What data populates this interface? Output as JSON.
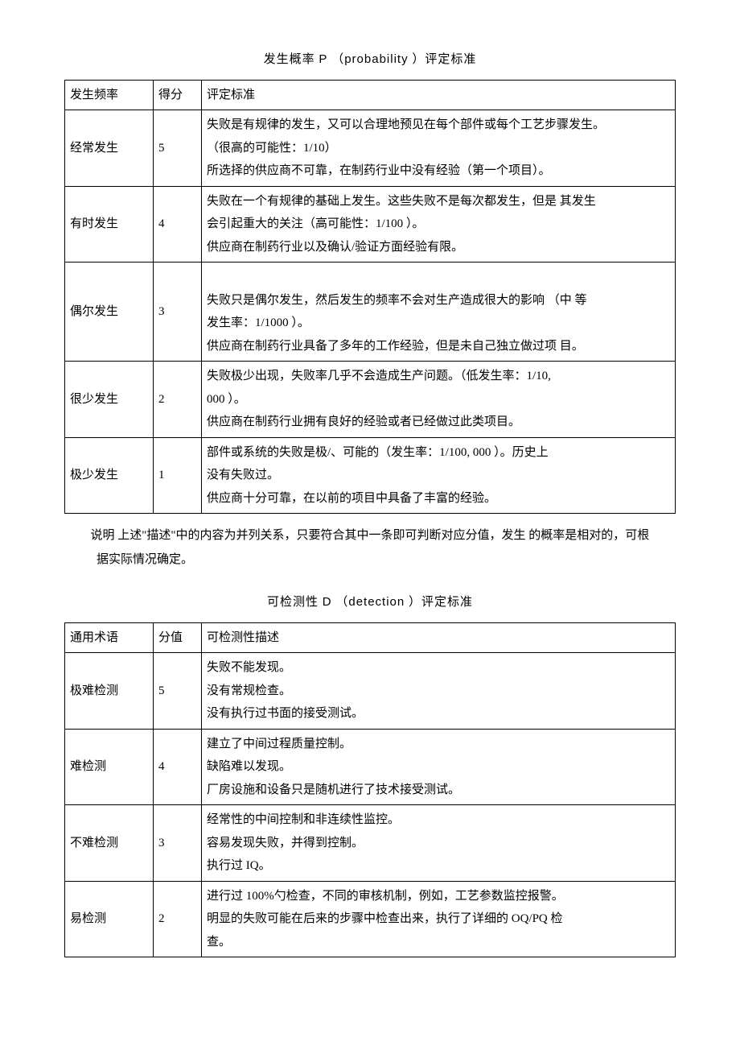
{
  "table1": {
    "title_prefix": "发生概率 ",
    "title_letter": "P",
    "title_paren_open": " （",
    "title_latin": "probability",
    "title_paren_close": " ）评定标准",
    "headers": {
      "c1": "发生频率",
      "c2": "得分",
      "c3": "评定标准"
    },
    "rows": [
      {
        "term": "经常发生",
        "score": "5",
        "lines": [
          " 失败是有规律的发生，又可以合理地预见在每个部件或每个工艺步骤发生。",
          "（很高的可能性：1/10）",
          "所选择的供应商不可靠，在制药行业中没有经验（第一个项目）。"
        ]
      },
      {
        "term": "有时发生",
        "score": "4",
        "lines": [
          " 失败在一个有规律的基础上发生。这些失败不是每次都发生，但是 其发生",
          "会引起重大的关注（高可能性：1/100 ）。",
          "供应商在制药行业以及确认/验证方面经验有限。"
        ]
      },
      {
        "term": "偶尔发生",
        "score": "3",
        "lines": [
          "",
          " 失败只是偶尔发生，然后发生的频率不会对生产造成很大的影响 （中 等",
          "发生率：1/1000 ）。",
          " 供应商在制药行业具备了多年的工作经验，但是未自己独立做过项 目。"
        ]
      },
      {
        "term": "很少发生",
        "score": "2",
        "lines": [
          "失败极少出现，失败率几乎不会造成生产问题。（低发生率：1/10,",
          "000 ）。",
          "供应商在制药行业拥有良好的经验或者已经做过此类项目。"
        ]
      },
      {
        "term": "极少发生",
        "score": "1",
        "lines": [
          "部件或系统的失败是极/、可能的（发生率：1/100, 000 ）。历史上",
          "没有失败过。",
          "供应商十分可靠，在以前的项目中具备了丰富的经验。"
        ]
      }
    ]
  },
  "note": "说明  上述\"描述\"中的内容为并列关系，只要符合其中一条即可判断对应分值，发生 的概率是相对的，可根据实际情况确定。",
  "table2": {
    "title_prefix": "可检测性 ",
    "title_letter": "D",
    "title_paren_open": " （",
    "title_latin": "detection",
    "title_paren_close": " ）评定标准",
    "headers": {
      "c1": "通用术语",
      "c2": "分值",
      "c3": "可检测性描述"
    },
    "rows": [
      {
        "term": "极难检测",
        "score": "5",
        "lines": [
          "失败不能发现。",
          "没有常规检查。",
          "没有执行过书面的接受测试。"
        ]
      },
      {
        "term": "难检测",
        "score": "4",
        "lines": [
          "建立了中间过程质量控制。",
          "缺陷难以发现。",
          "厂房设施和设备只是随机进行了技术接受测试。"
        ]
      },
      {
        "term": "不难检测",
        "score": "3",
        "lines": [
          "经常性的中间控制和非连续性监控。",
          "容易发现失败，并得到控制。",
          "执行过 IQ。"
        ]
      },
      {
        "term": "易检测",
        "score": "2",
        "lines": [
          "进行过 100%勺检查，不同的审核机制，例如，工艺参数监控报警。",
          "明显的失败可能在后来的步骤中检查出来，执行了详细的 OQ/PQ 检",
          "查。"
        ]
      }
    ]
  }
}
